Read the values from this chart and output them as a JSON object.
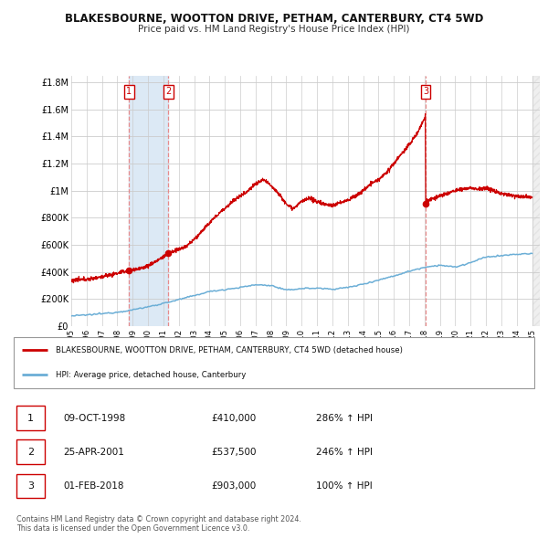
{
  "title": "BLAKESBOURNE, WOOTTON DRIVE, PETHAM, CANTERBURY, CT4 5WD",
  "subtitle": "Price paid vs. HM Land Registry's House Price Index (HPI)",
  "ylabel_ticks": [
    "£0",
    "£200K",
    "£400K",
    "£600K",
    "£800K",
    "£1M",
    "£1.2M",
    "£1.4M",
    "£1.6M",
    "£1.8M"
  ],
  "ytick_values": [
    0,
    200000,
    400000,
    600000,
    800000,
    1000000,
    1200000,
    1400000,
    1600000,
    1800000
  ],
  "ylim": [
    0,
    1850000
  ],
  "xlim_start": 1995.0,
  "xlim_end": 2025.5,
  "xticks": [
    1995,
    1996,
    1997,
    1998,
    1999,
    2000,
    2001,
    2002,
    2003,
    2004,
    2005,
    2006,
    2007,
    2008,
    2009,
    2010,
    2011,
    2012,
    2013,
    2014,
    2015,
    2016,
    2017,
    2018,
    2019,
    2020,
    2021,
    2022,
    2023,
    2024,
    2025
  ],
  "sale_dates": [
    1998.77,
    2001.32,
    2018.08
  ],
  "sale_prices": [
    410000,
    537500,
    903000
  ],
  "sale_labels": [
    "1",
    "2",
    "3"
  ],
  "hpi_color": "#6baed6",
  "price_color": "#cc0000",
  "vline_color": "#e88080",
  "shade_color": "#dce9f5",
  "marker_color": "#cc0000",
  "legend_price_label": "BLAKESBOURNE, WOOTTON DRIVE, PETHAM, CANTERBURY, CT4 5WD (detached house)",
  "legend_hpi_label": "HPI: Average price, detached house, Canterbury",
  "table_data": [
    [
      "1",
      "09-OCT-1998",
      "£410,000",
      "286% ↑ HPI"
    ],
    [
      "2",
      "25-APR-2001",
      "£537,500",
      "246% ↑ HPI"
    ],
    [
      "3",
      "01-FEB-2018",
      "£903,000",
      "100% ↑ HPI"
    ]
  ],
  "footnote": "Contains HM Land Registry data © Crown copyright and database right 2024.\nThis data is licensed under the Open Government Licence v3.0.",
  "bg_color": "#ffffff",
  "plot_bg_color": "#ffffff",
  "grid_color": "#cccccc"
}
